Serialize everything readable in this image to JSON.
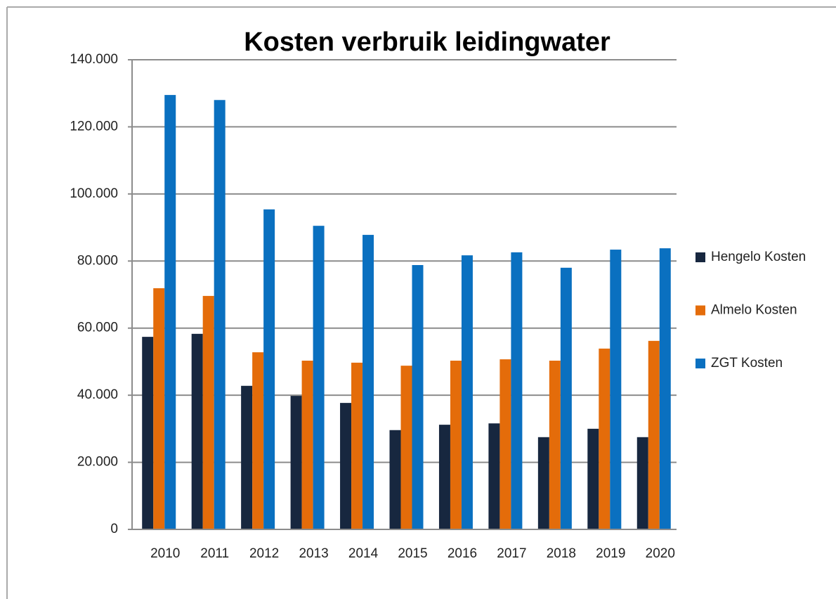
{
  "chart_data": {
    "type": "bar",
    "title": "Kosten verbruik leidingwater",
    "categories": [
      "2010",
      "2011",
      "2012",
      "2013",
      "2014",
      "2015",
      "2016",
      "2017",
      "2018",
      "2019",
      "2020"
    ],
    "series": [
      {
        "name": "Hengelo Kosten",
        "color": "#17273f",
        "values": [
          57400,
          58300,
          42800,
          39800,
          37700,
          29600,
          31200,
          31600,
          27500,
          30000,
          27500
        ]
      },
      {
        "name": "Almelo Kosten",
        "color": "#e46c0a",
        "values": [
          71900,
          69600,
          52800,
          50300,
          49700,
          48800,
          50300,
          50700,
          50300,
          53900,
          56200
        ]
      },
      {
        "name": "ZGT Kosten",
        "color": "#0a70c0",
        "values": [
          129500,
          128000,
          95400,
          90500,
          87800,
          78800,
          81700,
          82600,
          78000,
          83400,
          83800
        ]
      }
    ],
    "ylim": [
      0,
      140000
    ],
    "yticks": [
      0,
      {
        "value": 20000,
        "label": "20.000"
      },
      {
        "value": 40000,
        "label": "40.000"
      },
      {
        "value": 60000,
        "label": "60.000"
      },
      {
        "value": 80000,
        "label": "80.000"
      },
      {
        "value": 100000,
        "label": "100.000"
      },
      {
        "value": 120000,
        "label": "120.000"
      },
      {
        "value": 140000,
        "label": "140.000"
      }
    ],
    "grid": true,
    "legend": "right"
  }
}
